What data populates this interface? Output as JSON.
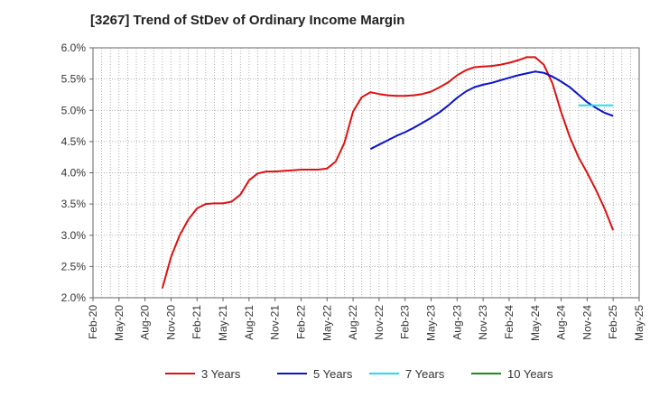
{
  "chart_data": {
    "type": "line",
    "title": "[3267]  Trend of StDev of Ordinary Income Margin",
    "xlabel": "",
    "ylabel": "",
    "ylim": [
      2.0,
      6.0
    ],
    "y_ticks": [
      "2.0%",
      "2.5%",
      "3.0%",
      "3.5%",
      "4.0%",
      "4.5%",
      "5.0%",
      "5.5%",
      "6.0%"
    ],
    "x_ticks": [
      "Feb-20",
      "May-20",
      "Aug-20",
      "Nov-20",
      "Feb-21",
      "May-21",
      "Aug-21",
      "Nov-21",
      "Feb-22",
      "May-22",
      "Aug-22",
      "Nov-22",
      "Feb-23",
      "May-23",
      "Aug-23",
      "Nov-23",
      "Feb-24",
      "May-24",
      "Aug-24",
      "Nov-24",
      "Feb-25",
      "May-25"
    ],
    "grid": true,
    "legend_position": "bottom",
    "series": [
      {
        "name": "3 Years",
        "color": "#dd1111",
        "points": [
          [
            "Oct-20",
            2.15
          ],
          [
            "Nov-20",
            2.65
          ],
          [
            "Dec-20",
            3.0
          ],
          [
            "Jan-21",
            3.25
          ],
          [
            "Feb-21",
            3.43
          ],
          [
            "Mar-21",
            3.5
          ],
          [
            "Apr-21",
            3.51
          ],
          [
            "May-21",
            3.51
          ],
          [
            "Jun-21",
            3.54
          ],
          [
            "Jul-21",
            3.65
          ],
          [
            "Aug-21",
            3.88
          ],
          [
            "Sep-21",
            3.99
          ],
          [
            "Oct-21",
            4.02
          ],
          [
            "Nov-21",
            4.02
          ],
          [
            "Dec-21",
            4.03
          ],
          [
            "Jan-22",
            4.04
          ],
          [
            "Feb-22",
            4.05
          ],
          [
            "Mar-22",
            4.05
          ],
          [
            "Apr-22",
            4.05
          ],
          [
            "May-22",
            4.07
          ],
          [
            "Jun-22",
            4.18
          ],
          [
            "Jul-22",
            4.48
          ],
          [
            "Aug-22",
            4.98
          ],
          [
            "Sep-22",
            5.21
          ],
          [
            "Oct-22",
            5.29
          ],
          [
            "Nov-22",
            5.26
          ],
          [
            "Dec-22",
            5.24
          ],
          [
            "Jan-23",
            5.23
          ],
          [
            "Feb-23",
            5.23
          ],
          [
            "Mar-23",
            5.24
          ],
          [
            "Apr-23",
            5.26
          ],
          [
            "May-23",
            5.3
          ],
          [
            "Jun-23",
            5.37
          ],
          [
            "Jul-23",
            5.45
          ],
          [
            "Aug-23",
            5.56
          ],
          [
            "Sep-23",
            5.64
          ],
          [
            "Oct-23",
            5.69
          ],
          [
            "Nov-23",
            5.7
          ],
          [
            "Dec-23",
            5.71
          ],
          [
            "Jan-24",
            5.73
          ],
          [
            "Feb-24",
            5.76
          ],
          [
            "Mar-24",
            5.8
          ],
          [
            "Apr-24",
            5.85
          ],
          [
            "May-24",
            5.85
          ],
          [
            "Jun-24",
            5.73
          ],
          [
            "Jul-24",
            5.43
          ],
          [
            "Aug-24",
            4.97
          ],
          [
            "Sep-24",
            4.57
          ],
          [
            "Oct-24",
            4.25
          ],
          [
            "Nov-24",
            4.0
          ],
          [
            "Dec-24",
            3.73
          ],
          [
            "Jan-25",
            3.43
          ],
          [
            "Feb-25",
            3.08
          ]
        ]
      },
      {
        "name": "5 Years",
        "color": "#0a14c8",
        "points": [
          [
            "Oct-22",
            4.38
          ],
          [
            "Nov-22",
            4.45
          ],
          [
            "Dec-22",
            4.52
          ],
          [
            "Jan-23",
            4.59
          ],
          [
            "Feb-23",
            4.65
          ],
          [
            "Mar-23",
            4.72
          ],
          [
            "Apr-23",
            4.8
          ],
          [
            "May-23",
            4.88
          ],
          [
            "Jun-23",
            4.97
          ],
          [
            "Jul-23",
            5.08
          ],
          [
            "Aug-23",
            5.2
          ],
          [
            "Sep-23",
            5.3
          ],
          [
            "Oct-23",
            5.37
          ],
          [
            "Nov-23",
            5.41
          ],
          [
            "Dec-23",
            5.44
          ],
          [
            "Jan-24",
            5.48
          ],
          [
            "Feb-24",
            5.52
          ],
          [
            "Mar-24",
            5.56
          ],
          [
            "Apr-24",
            5.59
          ],
          [
            "May-24",
            5.62
          ],
          [
            "Jun-24",
            5.6
          ],
          [
            "Jul-24",
            5.54
          ],
          [
            "Aug-24",
            5.46
          ],
          [
            "Sep-24",
            5.37
          ],
          [
            "Oct-24",
            5.25
          ],
          [
            "Nov-24",
            5.13
          ],
          [
            "Dec-24",
            5.04
          ],
          [
            "Jan-25",
            4.96
          ],
          [
            "Feb-25",
            4.91
          ]
        ]
      },
      {
        "name": "7 Years",
        "color": "#22ddee",
        "points": [
          [
            "Oct-24",
            5.08
          ],
          [
            "Nov-24",
            5.08
          ],
          [
            "Dec-24",
            5.08
          ],
          [
            "Jan-25",
            5.08
          ],
          [
            "Feb-25",
            5.08
          ]
        ]
      },
      {
        "name": "10 Years",
        "color": "#1a8a1a",
        "points": []
      }
    ]
  }
}
